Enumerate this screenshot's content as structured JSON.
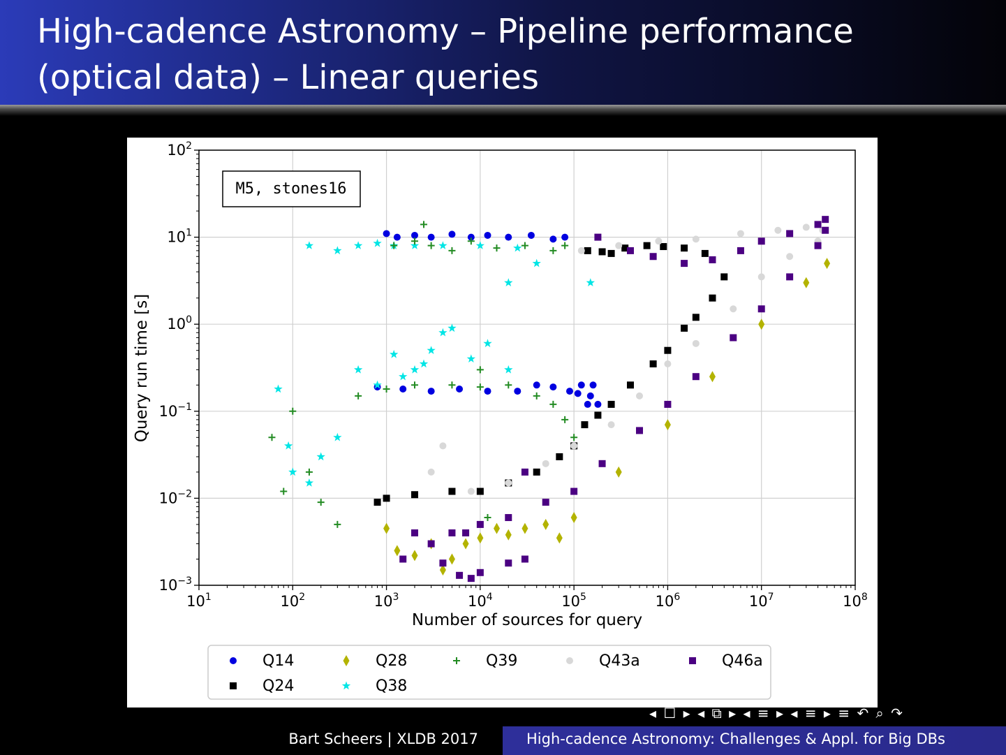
{
  "slide": {
    "title_line1": "High-cadence Astronomy – Pipeline performance",
    "title_line2": "(optical data) – Linear queries",
    "footer_left": "Bart Scheers | XLDB 2017",
    "footer_right": "High-cadence Astronomy: Challenges & Appl. for Big DBs",
    "nav_symbols": "◂ ☐ ▸ ◂ ⧉ ▸ ◂ ≡ ▸ ◂ ≡ ▸   ≡   ↶ ⌕ ↷"
  },
  "chart_data": {
    "type": "scatter",
    "xlabel": "Number of sources for query",
    "ylabel": "Query run time [s]",
    "xscale": "log",
    "yscale": "log",
    "xlim": [
      10,
      100000000
    ],
    "ylim": [
      0.001,
      100
    ],
    "x_ticks": [
      {
        "value": 10,
        "base": "10",
        "exp": "1"
      },
      {
        "value": 100,
        "base": "10",
        "exp": "2"
      },
      {
        "value": 1000,
        "base": "10",
        "exp": "3"
      },
      {
        "value": 10000,
        "base": "10",
        "exp": "4"
      },
      {
        "value": 100000,
        "base": "10",
        "exp": "5"
      },
      {
        "value": 1000000,
        "base": "10",
        "exp": "6"
      },
      {
        "value": 10000000,
        "base": "10",
        "exp": "7"
      },
      {
        "value": 100000000,
        "base": "10",
        "exp": "8"
      }
    ],
    "y_ticks": [
      {
        "value": 0.001,
        "base": "10",
        "exp": "−3"
      },
      {
        "value": 0.01,
        "base": "10",
        "exp": "−2"
      },
      {
        "value": 0.1,
        "base": "10",
        "exp": "−1"
      },
      {
        "value": 1,
        "base": "10",
        "exp": "0"
      },
      {
        "value": 10,
        "base": "10",
        "exp": "1"
      },
      {
        "value": 100,
        "base": "10",
        "exp": "2"
      }
    ],
    "grid": true,
    "annotation": "M5, stones16",
    "legend_position": "bottom",
    "series": [
      {
        "name": "Q14",
        "marker": "circle",
        "color": "#0000e0",
        "points": [
          [
            1000,
            11
          ],
          [
            1300,
            10
          ],
          [
            2000,
            10.5
          ],
          [
            3000,
            10
          ],
          [
            5000,
            10.8
          ],
          [
            8000,
            10
          ],
          [
            12000,
            10.5
          ],
          [
            20000,
            10
          ],
          [
            35000,
            10.5
          ],
          [
            60000,
            9.5
          ],
          [
            80000,
            10
          ],
          [
            800,
            0.19
          ],
          [
            1500,
            0.18
          ],
          [
            3000,
            0.17
          ],
          [
            6000,
            0.18
          ],
          [
            12000,
            0.17
          ],
          [
            25000,
            0.17
          ],
          [
            40000,
            0.2
          ],
          [
            60000,
            0.19
          ],
          [
            90000,
            0.17
          ],
          [
            120000,
            0.2
          ],
          [
            150000,
            0.15
          ],
          [
            180000,
            0.12
          ],
          [
            140000,
            0.12
          ],
          [
            160000,
            0.2
          ],
          [
            110000,
            0.16
          ]
        ]
      },
      {
        "name": "Q24",
        "marker": "square",
        "color": "#000000",
        "points": [
          [
            140000,
            7
          ],
          [
            200000,
            6.8
          ],
          [
            250000,
            6.5
          ],
          [
            350000,
            7.5
          ],
          [
            600000,
            8
          ],
          [
            900000,
            7.8
          ],
          [
            1500000,
            7.5
          ],
          [
            2500000,
            6.5
          ],
          [
            4000000,
            3.5
          ],
          [
            3000000,
            2
          ],
          [
            2000000,
            1.2
          ],
          [
            1500000,
            0.9
          ],
          [
            1000000,
            0.5
          ],
          [
            700000,
            0.35
          ],
          [
            400000,
            0.2
          ],
          [
            250000,
            0.12
          ],
          [
            180000,
            0.09
          ],
          [
            130000,
            0.07
          ],
          [
            100000,
            0.04
          ],
          [
            70000,
            0.03
          ],
          [
            40000,
            0.02
          ],
          [
            20000,
            0.015
          ],
          [
            10000,
            0.012
          ],
          [
            5000,
            0.012
          ],
          [
            2000,
            0.011
          ],
          [
            1000,
            0.01
          ],
          [
            800,
            0.009
          ]
        ]
      },
      {
        "name": "Q28",
        "marker": "diamond",
        "color": "#b3b300",
        "points": [
          [
            1000,
            0.0045
          ],
          [
            1300,
            0.0025
          ],
          [
            2000,
            0.0022
          ],
          [
            3000,
            0.003
          ],
          [
            4000,
            0.0015
          ],
          [
            5000,
            0.002
          ],
          [
            7000,
            0.003
          ],
          [
            10000,
            0.0035
          ],
          [
            15000,
            0.0045
          ],
          [
            20000,
            0.0038
          ],
          [
            30000,
            0.0045
          ],
          [
            50000,
            0.005
          ],
          [
            70000,
            0.0035
          ],
          [
            100000,
            0.006
          ],
          [
            300000,
            0.02
          ],
          [
            1000000,
            0.07
          ],
          [
            3000000,
            0.25
          ],
          [
            10000000,
            1
          ],
          [
            30000000,
            3
          ],
          [
            50000000,
            5
          ]
        ]
      },
      {
        "name": "Q38",
        "marker": "star",
        "color": "#00e5e5",
        "points": [
          [
            150,
            8
          ],
          [
            300,
            7
          ],
          [
            500,
            8
          ],
          [
            800,
            8.5
          ],
          [
            1200,
            8
          ],
          [
            2000,
            8
          ],
          [
            4000,
            8
          ],
          [
            10000,
            8
          ],
          [
            25000,
            7.5
          ],
          [
            40000,
            5
          ],
          [
            20000,
            3
          ],
          [
            150000,
            3
          ],
          [
            70,
            0.18
          ],
          [
            90,
            0.04
          ],
          [
            100,
            0.02
          ],
          [
            150,
            0.015
          ],
          [
            200,
            0.03
          ],
          [
            300,
            0.05
          ],
          [
            500,
            0.3
          ],
          [
            800,
            0.2
          ],
          [
            1200,
            0.45
          ],
          [
            2000,
            0.3
          ],
          [
            3000,
            0.5
          ],
          [
            4000,
            0.8
          ],
          [
            5000,
            0.9
          ],
          [
            8000,
            0.4
          ],
          [
            12000,
            0.6
          ],
          [
            20000,
            0.3
          ],
          [
            1500,
            0.25
          ],
          [
            2500,
            0.35
          ]
        ]
      },
      {
        "name": "Q39",
        "marker": "plus",
        "color": "#228b22",
        "points": [
          [
            2500,
            14
          ],
          [
            1200,
            8
          ],
          [
            2000,
            9
          ],
          [
            3000,
            8
          ],
          [
            5000,
            7
          ],
          [
            8000,
            9
          ],
          [
            15000,
            7.5
          ],
          [
            30000,
            8
          ],
          [
            60000,
            7
          ],
          [
            80000,
            8
          ],
          [
            60,
            0.05
          ],
          [
            80,
            0.012
          ],
          [
            100,
            0.1
          ],
          [
            150,
            0.02
          ],
          [
            200,
            0.009
          ],
          [
            300,
            0.005
          ],
          [
            500,
            0.15
          ],
          [
            1000,
            0.18
          ],
          [
            2000,
            0.2
          ],
          [
            5000,
            0.2
          ],
          [
            10000,
            0.19
          ],
          [
            20000,
            0.2
          ],
          [
            40000,
            0.15
          ],
          [
            60000,
            0.12
          ],
          [
            80000,
            0.08
          ],
          [
            100000,
            0.05
          ],
          [
            10000,
            0.3
          ],
          [
            12000,
            0.006
          ]
        ]
      },
      {
        "name": "Q43a",
        "marker": "circle",
        "color": "#d8d8d8",
        "points": [
          [
            120000,
            7
          ],
          [
            300000,
            8
          ],
          [
            800000,
            9
          ],
          [
            2000000,
            9.5
          ],
          [
            6000000,
            11
          ],
          [
            15000000,
            12
          ],
          [
            30000000,
            13
          ],
          [
            45000000,
            12
          ],
          [
            40000000,
            9
          ],
          [
            20000000,
            6
          ],
          [
            10000000,
            3.5
          ],
          [
            5000000,
            1.5
          ],
          [
            2000000,
            0.6
          ],
          [
            1000000,
            0.35
          ],
          [
            500000,
            0.15
          ],
          [
            250000,
            0.07
          ],
          [
            100000,
            0.04
          ],
          [
            50000,
            0.025
          ],
          [
            20000,
            0.015
          ],
          [
            8000,
            0.012
          ],
          [
            3000,
            0.02
          ],
          [
            4000,
            0.04
          ]
        ]
      },
      {
        "name": "Q46a",
        "marker": "square",
        "color": "#4b0082",
        "points": [
          [
            180000,
            10
          ],
          [
            400000,
            7
          ],
          [
            700000,
            6
          ],
          [
            1500000,
            5
          ],
          [
            3000000,
            5.5
          ],
          [
            6000000,
            7
          ],
          [
            10000000,
            9
          ],
          [
            20000000,
            11
          ],
          [
            40000000,
            14
          ],
          [
            48000000,
            16
          ],
          [
            48000000,
            12
          ],
          [
            40000000,
            8
          ],
          [
            20000000,
            3.5
          ],
          [
            10000000,
            1.5
          ],
          [
            5000000,
            0.7
          ],
          [
            2000000,
            0.25
          ],
          [
            1000000,
            0.12
          ],
          [
            500000,
            0.06
          ],
          [
            200000,
            0.025
          ],
          [
            100000,
            0.012
          ],
          [
            50000,
            0.009
          ],
          [
            20000,
            0.006
          ],
          [
            10000,
            0.005
          ],
          [
            5000,
            0.004
          ],
          [
            3000,
            0.003
          ],
          [
            2000,
            0.004
          ],
          [
            1500,
            0.002
          ],
          [
            6000,
            0.0013
          ],
          [
            8000,
            0.0012
          ],
          [
            10000,
            0.0014
          ],
          [
            20000,
            0.0018
          ],
          [
            30000,
            0.002
          ],
          [
            4000,
            0.0018
          ],
          [
            30000,
            0.02
          ],
          [
            7000,
            0.004
          ]
        ]
      }
    ]
  }
}
